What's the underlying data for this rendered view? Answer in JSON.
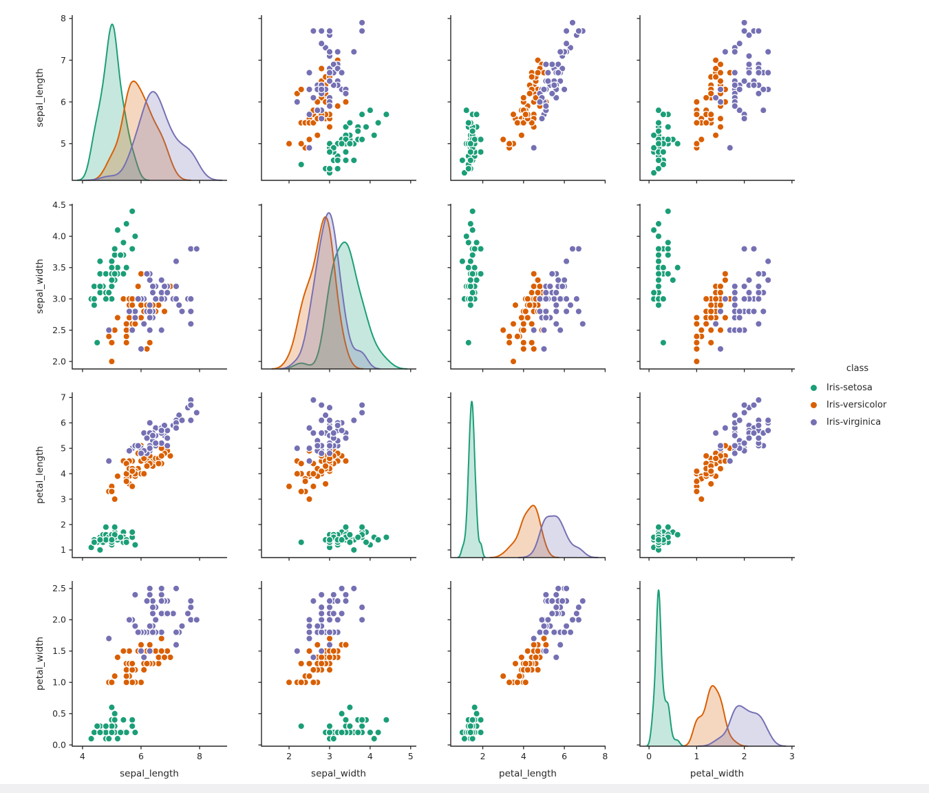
{
  "chart_data": {
    "type": "scatter",
    "grid": "pairplot",
    "diagonal": "kde",
    "title": "",
    "variables": [
      "sepal_length",
      "sepal_width",
      "petal_length",
      "petal_width"
    ],
    "legend": {
      "title": "class",
      "position": "right",
      "entries": [
        {
          "label": "Iris-setosa",
          "color": "#1b9e77"
        },
        {
          "label": "Iris-versicolor",
          "color": "#d95f02"
        },
        {
          "label": "Iris-virginica",
          "color": "#7570b3"
        }
      ]
    },
    "axes": {
      "sepal_length": {
        "x": {
          "lim": [
            3.65,
            8.94
          ],
          "tick_values": [
            4,
            6,
            8
          ],
          "tick_labels": [
            "4",
            "6",
            "8"
          ]
        },
        "y": {
          "lim": [
            4.12,
            8.08
          ],
          "tick_values": [
            5,
            6,
            7,
            8
          ],
          "tick_labels": [
            "5",
            "6",
            "7",
            "8"
          ]
        }
      },
      "sepal_width": {
        "x": {
          "lim": [
            1.32,
            5.14
          ],
          "tick_values": [
            2,
            3,
            4,
            5
          ],
          "tick_labels": [
            "2",
            "3",
            "4",
            "5"
          ]
        },
        "y": {
          "lim": [
            1.88,
            4.52
          ],
          "tick_values": [
            2.0,
            2.5,
            3.0,
            3.5,
            4.0,
            4.5
          ],
          "tick_labels": [
            "2.0",
            "2.5",
            "3.0",
            "3.5",
            "4.0",
            "4.5"
          ]
        }
      },
      "petal_length": {
        "x": {
          "lim": [
            0.43,
            8.02
          ],
          "tick_values": [
            2,
            4,
            6,
            8
          ],
          "tick_labels": [
            "2",
            "4",
            "6",
            "8"
          ]
        },
        "y": {
          "lim": [
            0.7,
            7.2
          ],
          "tick_values": [
            1,
            2,
            3,
            4,
            5,
            6,
            7
          ],
          "tick_labels": [
            "1",
            "2",
            "3",
            "4",
            "5",
            "6",
            "7"
          ]
        }
      },
      "petal_width": {
        "x": {
          "lim": [
            -0.19,
            3.06
          ],
          "tick_values": [
            0,
            1,
            2,
            3
          ],
          "tick_labels": [
            "0",
            "1",
            "2",
            "3"
          ]
        },
        "y": {
          "lim": [
            -0.02,
            2.62
          ],
          "tick_values": [
            0.0,
            0.5,
            1.0,
            1.5,
            2.0,
            2.5
          ],
          "tick_labels": [
            "0.0",
            "0.5",
            "1.0",
            "1.5",
            "2.0",
            "2.5"
          ]
        }
      }
    },
    "series": [
      {
        "name": "Iris-setosa",
        "color": "#1b9e77",
        "data": [
          [
            5.1,
            3.5,
            1.4,
            0.2
          ],
          [
            4.9,
            3.0,
            1.4,
            0.2
          ],
          [
            4.7,
            3.2,
            1.3,
            0.2
          ],
          [
            4.6,
            3.1,
            1.5,
            0.2
          ],
          [
            5.0,
            3.6,
            1.4,
            0.2
          ],
          [
            5.4,
            3.9,
            1.7,
            0.4
          ],
          [
            4.6,
            3.4,
            1.4,
            0.3
          ],
          [
            5.0,
            3.4,
            1.5,
            0.2
          ],
          [
            4.4,
            2.9,
            1.4,
            0.2
          ],
          [
            4.9,
            3.1,
            1.5,
            0.1
          ],
          [
            5.4,
            3.7,
            1.5,
            0.2
          ],
          [
            4.8,
            3.4,
            1.6,
            0.2
          ],
          [
            4.8,
            3.0,
            1.4,
            0.1
          ],
          [
            4.3,
            3.0,
            1.1,
            0.1
          ],
          [
            5.8,
            4.0,
            1.2,
            0.2
          ],
          [
            5.7,
            4.4,
            1.5,
            0.4
          ],
          [
            5.4,
            3.9,
            1.3,
            0.4
          ],
          [
            5.1,
            3.5,
            1.4,
            0.3
          ],
          [
            5.7,
            3.8,
            1.7,
            0.3
          ],
          [
            5.1,
            3.8,
            1.5,
            0.3
          ],
          [
            5.4,
            3.4,
            1.7,
            0.2
          ],
          [
            5.1,
            3.7,
            1.5,
            0.4
          ],
          [
            4.6,
            3.6,
            1.0,
            0.2
          ],
          [
            5.1,
            3.3,
            1.7,
            0.5
          ],
          [
            4.8,
            3.4,
            1.9,
            0.2
          ],
          [
            5.0,
            3.0,
            1.6,
            0.2
          ],
          [
            5.0,
            3.4,
            1.6,
            0.4
          ],
          [
            5.2,
            3.5,
            1.5,
            0.2
          ],
          [
            5.2,
            3.4,
            1.4,
            0.2
          ],
          [
            4.7,
            3.2,
            1.6,
            0.2
          ],
          [
            4.8,
            3.1,
            1.6,
            0.2
          ],
          [
            5.4,
            3.4,
            1.5,
            0.4
          ],
          [
            5.2,
            4.1,
            1.5,
            0.1
          ],
          [
            5.5,
            4.2,
            1.4,
            0.2
          ],
          [
            4.9,
            3.1,
            1.5,
            0.1
          ],
          [
            5.0,
            3.2,
            1.2,
            0.2
          ],
          [
            5.5,
            3.5,
            1.3,
            0.2
          ],
          [
            4.9,
            3.1,
            1.5,
            0.1
          ],
          [
            4.4,
            3.0,
            1.3,
            0.2
          ],
          [
            5.1,
            3.4,
            1.5,
            0.2
          ],
          [
            5.0,
            3.5,
            1.3,
            0.3
          ],
          [
            4.5,
            2.3,
            1.3,
            0.3
          ],
          [
            4.4,
            3.2,
            1.3,
            0.2
          ],
          [
            5.0,
            3.5,
            1.6,
            0.6
          ],
          [
            5.1,
            3.8,
            1.9,
            0.4
          ],
          [
            4.8,
            3.0,
            1.4,
            0.3
          ],
          [
            5.1,
            3.8,
            1.6,
            0.2
          ],
          [
            4.6,
            3.2,
            1.4,
            0.2
          ],
          [
            5.3,
            3.7,
            1.5,
            0.2
          ],
          [
            5.0,
            3.3,
            1.4,
            0.2
          ]
        ]
      },
      {
        "name": "Iris-versicolor",
        "color": "#d95f02",
        "data": [
          [
            7.0,
            3.2,
            4.7,
            1.4
          ],
          [
            6.4,
            3.2,
            4.5,
            1.5
          ],
          [
            6.9,
            3.1,
            4.9,
            1.5
          ],
          [
            5.5,
            2.3,
            4.0,
            1.3
          ],
          [
            6.5,
            2.8,
            4.6,
            1.5
          ],
          [
            5.7,
            2.8,
            4.5,
            1.3
          ],
          [
            6.3,
            3.3,
            4.7,
            1.6
          ],
          [
            4.9,
            2.4,
            3.3,
            1.0
          ],
          [
            6.6,
            2.9,
            4.6,
            1.3
          ],
          [
            5.2,
            2.7,
            3.9,
            1.4
          ],
          [
            5.0,
            2.0,
            3.5,
            1.0
          ],
          [
            5.9,
            3.0,
            4.2,
            1.5
          ],
          [
            6.0,
            2.2,
            4.0,
            1.0
          ],
          [
            6.1,
            2.9,
            4.7,
            1.4
          ],
          [
            5.6,
            2.9,
            3.6,
            1.3
          ],
          [
            6.7,
            3.1,
            4.4,
            1.4
          ],
          [
            5.6,
            3.0,
            4.5,
            1.5
          ],
          [
            5.8,
            2.7,
            4.1,
            1.0
          ],
          [
            6.2,
            2.2,
            4.5,
            1.5
          ],
          [
            5.6,
            2.5,
            3.9,
            1.1
          ],
          [
            5.9,
            3.2,
            4.8,
            1.8
          ],
          [
            6.1,
            2.8,
            4.0,
            1.3
          ],
          [
            6.3,
            2.5,
            4.9,
            1.5
          ],
          [
            6.1,
            2.8,
            4.7,
            1.2
          ],
          [
            6.4,
            2.9,
            4.3,
            1.3
          ],
          [
            6.6,
            3.0,
            4.4,
            1.4
          ],
          [
            6.8,
            2.8,
            4.8,
            1.4
          ],
          [
            6.7,
            3.0,
            5.0,
            1.7
          ],
          [
            6.0,
            2.9,
            4.5,
            1.5
          ],
          [
            5.7,
            2.6,
            3.5,
            1.0
          ],
          [
            5.5,
            2.4,
            3.8,
            1.1
          ],
          [
            5.5,
            2.4,
            3.7,
            1.0
          ],
          [
            5.8,
            2.7,
            3.9,
            1.2
          ],
          [
            6.0,
            2.7,
            5.1,
            1.6
          ],
          [
            5.4,
            3.0,
            4.5,
            1.5
          ],
          [
            6.0,
            3.4,
            4.5,
            1.6
          ],
          [
            6.7,
            3.1,
            4.7,
            1.5
          ],
          [
            6.3,
            2.3,
            4.4,
            1.3
          ],
          [
            5.6,
            3.0,
            4.1,
            1.3
          ],
          [
            5.5,
            2.5,
            4.0,
            1.3
          ],
          [
            5.5,
            2.6,
            4.4,
            1.2
          ],
          [
            6.1,
            3.0,
            4.6,
            1.4
          ],
          [
            5.8,
            2.6,
            4.0,
            1.2
          ],
          [
            5.0,
            2.3,
            3.3,
            1.0
          ],
          [
            5.6,
            2.7,
            4.2,
            1.3
          ],
          [
            5.7,
            3.0,
            4.2,
            1.2
          ],
          [
            5.7,
            2.9,
            4.2,
            1.3
          ],
          [
            6.2,
            2.9,
            4.3,
            1.3
          ],
          [
            5.1,
            2.5,
            3.0,
            1.1
          ],
          [
            5.7,
            2.8,
            4.1,
            1.3
          ]
        ]
      },
      {
        "name": "Iris-virginica",
        "color": "#7570b3",
        "data": [
          [
            6.3,
            3.3,
            6.0,
            2.5
          ],
          [
            5.8,
            2.7,
            5.1,
            1.9
          ],
          [
            7.1,
            3.0,
            5.9,
            2.1
          ],
          [
            6.3,
            2.9,
            5.6,
            1.8
          ],
          [
            6.5,
            3.0,
            5.8,
            2.2
          ],
          [
            7.6,
            3.0,
            6.6,
            2.1
          ],
          [
            4.9,
            2.5,
            4.5,
            1.7
          ],
          [
            7.3,
            2.9,
            6.3,
            1.8
          ],
          [
            6.7,
            2.5,
            5.8,
            1.8
          ],
          [
            7.2,
            3.6,
            6.1,
            2.5
          ],
          [
            6.5,
            3.2,
            5.1,
            2.0
          ],
          [
            6.4,
            2.7,
            5.3,
            1.9
          ],
          [
            6.8,
            3.0,
            5.5,
            2.1
          ],
          [
            5.7,
            2.5,
            5.0,
            2.0
          ],
          [
            5.8,
            2.8,
            5.1,
            2.4
          ],
          [
            6.4,
            3.2,
            5.3,
            2.3
          ],
          [
            6.5,
            3.0,
            5.5,
            1.8
          ],
          [
            7.7,
            3.8,
            6.7,
            2.2
          ],
          [
            7.7,
            2.6,
            6.9,
            2.3
          ],
          [
            6.0,
            2.2,
            5.0,
            1.5
          ],
          [
            6.9,
            3.2,
            5.7,
            2.3
          ],
          [
            5.6,
            2.8,
            4.9,
            2.0
          ],
          [
            7.7,
            2.8,
            6.7,
            2.0
          ],
          [
            6.3,
            2.7,
            4.9,
            1.8
          ],
          [
            6.7,
            3.3,
            5.7,
            2.1
          ],
          [
            7.2,
            3.2,
            6.0,
            1.8
          ],
          [
            6.2,
            2.8,
            4.8,
            1.8
          ],
          [
            6.1,
            3.0,
            4.9,
            1.8
          ],
          [
            6.4,
            2.8,
            5.6,
            2.1
          ],
          [
            7.2,
            3.0,
            5.8,
            1.6
          ],
          [
            7.4,
            2.8,
            6.1,
            1.9
          ],
          [
            7.9,
            3.8,
            6.4,
            2.0
          ],
          [
            6.4,
            2.8,
            5.6,
            2.2
          ],
          [
            6.3,
            2.8,
            5.1,
            1.5
          ],
          [
            6.1,
            2.6,
            5.6,
            1.4
          ],
          [
            7.7,
            3.0,
            6.1,
            2.3
          ],
          [
            6.3,
            3.4,
            5.6,
            2.4
          ],
          [
            6.4,
            3.1,
            5.5,
            1.8
          ],
          [
            6.0,
            3.0,
            4.8,
            1.8
          ],
          [
            6.9,
            3.1,
            5.4,
            2.1
          ],
          [
            6.7,
            3.1,
            5.6,
            2.4
          ],
          [
            6.9,
            3.1,
            5.1,
            2.3
          ],
          [
            5.8,
            2.7,
            5.1,
            1.9
          ],
          [
            6.8,
            3.2,
            5.9,
            2.3
          ],
          [
            6.7,
            3.3,
            5.7,
            2.5
          ],
          [
            6.7,
            3.0,
            5.2,
            2.3
          ],
          [
            6.3,
            2.5,
            5.0,
            1.9
          ],
          [
            6.5,
            3.0,
            5.2,
            2.0
          ],
          [
            6.2,
            3.4,
            5.4,
            2.3
          ],
          [
            5.9,
            3.0,
            5.1,
            1.8
          ]
        ]
      }
    ],
    "style": {
      "spine_color": "#262626",
      "marker_edge_color": "#ffffff",
      "kde_fill_alpha": 0.25,
      "background": "#ffffff"
    }
  },
  "window": {
    "footer_strip_color": "#f0f0f2"
  }
}
